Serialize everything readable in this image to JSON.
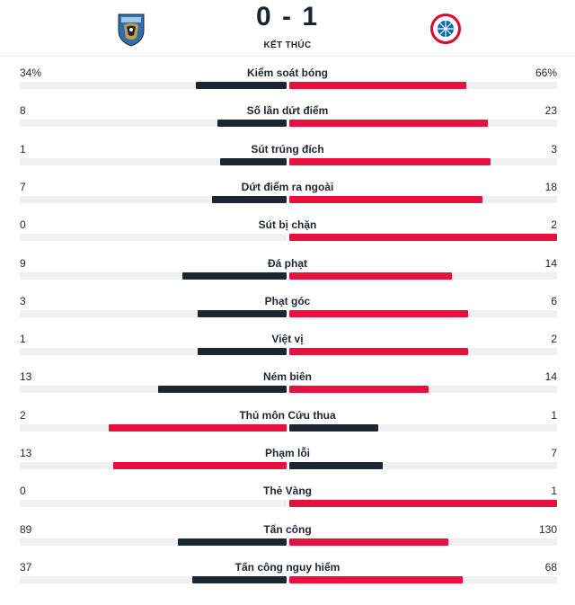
{
  "match": {
    "score": "0 - 1",
    "status": "KẾT THÚC",
    "home_logo_icon": "kawasaki-frontale-crest-icon",
    "away_logo_icon": "bayern-munich-crest-icon"
  },
  "colors": {
    "leader": "#e8103d",
    "trailer": "#1c2632",
    "track": "#eef0f2"
  },
  "stats": [
    {
      "label": "Kiểm soát bóng",
      "home": "34%",
      "away": "66%",
      "home_value": 34,
      "away_value": 66
    },
    {
      "label": "Số lần dứt điểm",
      "home": "8",
      "away": "23",
      "home_value": 8,
      "away_value": 23
    },
    {
      "label": "Sút trúng đích",
      "home": "1",
      "away": "3",
      "home_value": 1,
      "away_value": 3
    },
    {
      "label": "Dứt điểm ra ngoài",
      "home": "7",
      "away": "18",
      "home_value": 7,
      "away_value": 18
    },
    {
      "label": "Sút bị chặn",
      "home": "0",
      "away": "2",
      "home_value": 0,
      "away_value": 2
    },
    {
      "label": "Đá phạt",
      "home": "9",
      "away": "14",
      "home_value": 9,
      "away_value": 14
    },
    {
      "label": "Phạt góc",
      "home": "3",
      "away": "6",
      "home_value": 3,
      "away_value": 6
    },
    {
      "label": "Việt vị",
      "home": "1",
      "away": "2",
      "home_value": 1,
      "away_value": 2
    },
    {
      "label": "Ném biên",
      "home": "13",
      "away": "14",
      "home_value": 13,
      "away_value": 14
    },
    {
      "label": "Thủ môn Cứu thua",
      "home": "2",
      "away": "1",
      "home_value": 2,
      "away_value": 1
    },
    {
      "label": "Phạm lỗi",
      "home": "13",
      "away": "7",
      "home_value": 13,
      "away_value": 7
    },
    {
      "label": "Thẻ Vàng",
      "home": "0",
      "away": "1",
      "home_value": 0,
      "away_value": 1
    },
    {
      "label": "Tấn công",
      "home": "89",
      "away": "130",
      "home_value": 89,
      "away_value": 130
    },
    {
      "label": "Tấn công nguy hiểm",
      "home": "37",
      "away": "68",
      "home_value": 37,
      "away_value": 68
    }
  ]
}
